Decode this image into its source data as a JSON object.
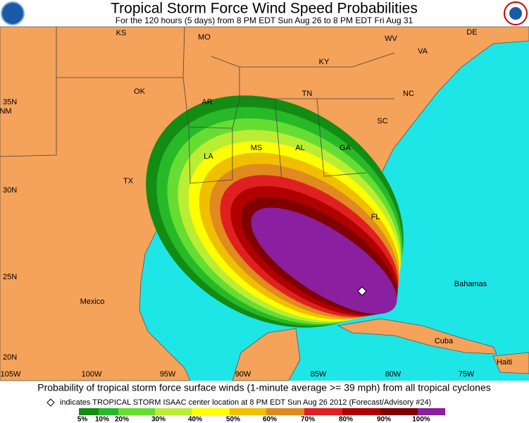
{
  "header": {
    "title": "Tropical Storm Force Wind Speed Probabilities",
    "subtitle": "For the 120 hours (5 days) from 8 PM EDT Sun Aug 26 to 8 PM EDT Fri Aug 31"
  },
  "map": {
    "places": [
      "KS",
      "MO",
      "KY",
      "WV",
      "VA",
      "DE",
      "OK",
      "AR",
      "TN",
      "NC",
      "SC",
      "NM",
      "LA",
      "MS",
      "AL",
      "GA",
      "TX",
      "FL",
      "Mexico",
      "Bahamas",
      "Cuba",
      "Haiti"
    ],
    "latitudes": [
      "35N",
      "30N",
      "25N",
      "20N"
    ],
    "longitudes": [
      "105W",
      "100W",
      "95W",
      "90W",
      "85W",
      "80W",
      "75W"
    ]
  },
  "footer": {
    "caption": "Probability of tropical storm force surface winds (1-minute average >= 39 mph) from all tropical cyclones",
    "note": "indicates TROPICAL STORM ISAAC center location at 8 PM EDT Sun Aug 26 2012 (Forecast/Advisory #24)"
  },
  "legend": {
    "labels": [
      "5%",
      "10%",
      "20%",
      "30%",
      "40%",
      "50%",
      "60%",
      "70%",
      "80%",
      "90%",
      "100%"
    ]
  }
}
